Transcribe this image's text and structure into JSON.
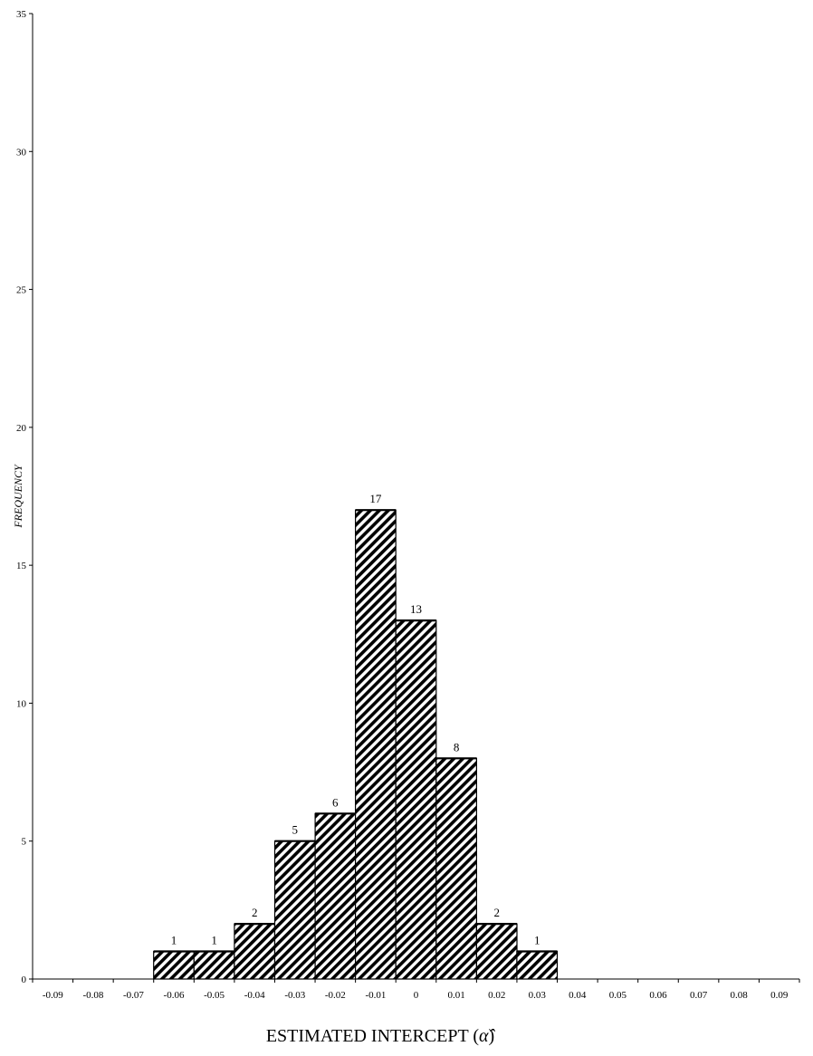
{
  "chart_data": {
    "type": "bar",
    "title": "",
    "xlabel": "ESTIMATED INTERCEPT",
    "xlabel_symbol": "α̂",
    "ylabel": "FREQUENCY",
    "ylim": [
      0,
      35
    ],
    "y_ticks": [
      "0",
      "5",
      "10",
      "15",
      "20",
      "25",
      "30",
      "35"
    ],
    "categories": [
      "-0.09",
      "-0.08",
      "-0.07",
      "-0.06",
      "-0.05",
      "-0.04",
      "-0.03",
      "-0.02",
      "-0.01",
      "0",
      "0.01",
      "0.02",
      "0.03",
      "0.04",
      "0.05",
      "0.06",
      "0.07",
      "0.08",
      "0.09"
    ],
    "values": [
      0,
      0,
      0,
      1,
      1,
      2,
      5,
      6,
      17,
      13,
      8,
      2,
      1,
      0,
      0,
      0,
      0,
      0,
      0
    ],
    "data_labels": [
      "",
      "",
      "",
      "1",
      "1",
      "2",
      "5",
      "6",
      "17",
      "13",
      "8",
      "2",
      "1",
      "",
      "",
      "",
      "",
      "",
      ""
    ],
    "bar_fill": "diagonal-hatch",
    "colors": {
      "bar_stroke": "#000000",
      "hatch": "#000000",
      "background": "#ffffff"
    },
    "grid": false,
    "legend": "none"
  }
}
